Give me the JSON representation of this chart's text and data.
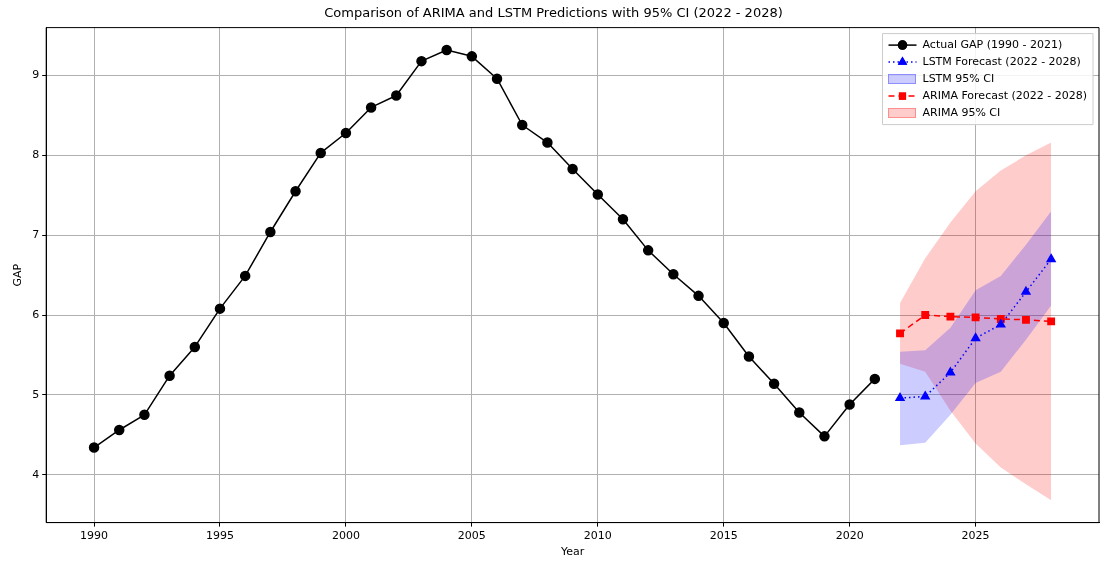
{
  "chart_data": {
    "type": "line",
    "title": "Comparison of ARIMA and LSTM Predictions with 95% CI (2022 - 2028)",
    "xlabel": "Year",
    "ylabel": "GAP",
    "xlim": [
      1988.1,
      2029.9
    ],
    "xticks": [
      1990,
      1995,
      2000,
      2005,
      2010,
      2015,
      2020,
      2025
    ],
    "ylim": [
      3.4,
      9.6
    ],
    "yticks": [
      4,
      5,
      6,
      7,
      8,
      9
    ],
    "grid": true,
    "legend": "top right",
    "annotations": [
      "LSTM 95% CI",
      "ARIMA 95% CI"
    ],
    "series": [
      {
        "name": "Actual GAP (1990 - 2021)",
        "type": "line",
        "color": "#000000",
        "marker": "circle",
        "line_style": "solid",
        "x": [
          1990,
          1991,
          1992,
          1993,
          1994,
          1995,
          1996,
          1997,
          1998,
          1999,
          2000,
          2001,
          2002,
          2003,
          2004,
          2005,
          2006,
          2007,
          2008,
          2009,
          2010,
          2011,
          2012,
          2013,
          2014,
          2015,
          2016,
          2017,
          2018,
          2019,
          2020,
          2021
        ],
        "values": [
          4.34,
          4.56,
          4.75,
          5.24,
          5.6,
          6.08,
          6.49,
          7.04,
          7.55,
          8.03,
          8.28,
          8.6,
          8.75,
          9.18,
          9.32,
          9.24,
          8.96,
          8.38,
          8.16,
          7.83,
          7.51,
          7.2,
          6.81,
          6.51,
          6.24,
          5.9,
          5.48,
          5.14,
          4.78,
          4.48,
          4.88,
          5.2
        ]
      },
      {
        "name": "LSTM Forecast (2022 - 2028)",
        "type": "line",
        "color": "#0000ff",
        "marker": "triangle",
        "line_style": "dotted",
        "x": [
          2022,
          2023,
          2024,
          2025,
          2026,
          2027,
          2028
        ],
        "values": [
          4.96,
          4.98,
          5.28,
          5.71,
          5.88,
          6.29,
          6.7
        ],
        "lower": [
          4.37,
          4.4,
          4.75,
          5.15,
          5.29,
          5.69,
          6.12
        ],
        "upper": [
          5.54,
          5.56,
          5.84,
          6.31,
          6.49,
          6.88,
          7.3
        ]
      },
      {
        "name": "ARIMA Forecast (2022 - 2028)",
        "type": "line",
        "color": "#ff0000",
        "marker": "square",
        "line_style": "dashed",
        "x": [
          2022,
          2023,
          2024,
          2025,
          2026,
          2027,
          2028
        ],
        "values": [
          5.77,
          6.0,
          5.98,
          5.97,
          5.95,
          5.94,
          5.92
        ],
        "lower": [
          5.39,
          5.29,
          4.8,
          4.39,
          4.09,
          3.88,
          3.68
        ],
        "upper": [
          6.15,
          6.71,
          7.16,
          7.55,
          7.81,
          8.0,
          8.16
        ]
      }
    ]
  }
}
